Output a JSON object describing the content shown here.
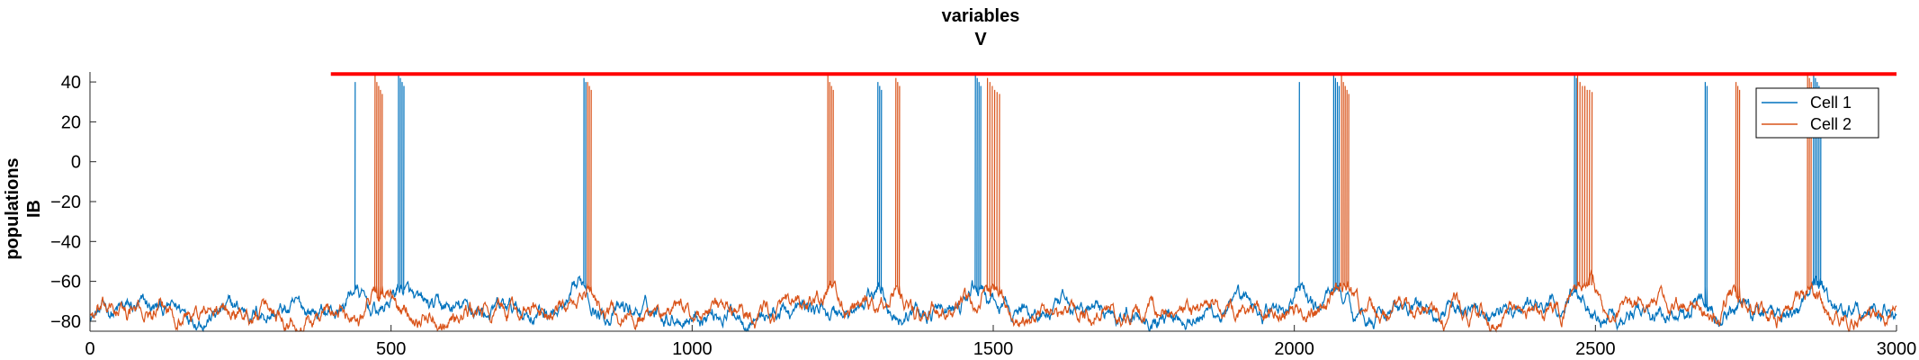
{
  "chart_data": {
    "type": "line",
    "title": [
      "variables",
      "V"
    ],
    "ylabel": [
      "populations",
      "IB"
    ],
    "xlabel": "",
    "xlim": [
      0,
      3000
    ],
    "ylim": [
      -85,
      45
    ],
    "xticks": [
      0,
      500,
      1000,
      1500,
      2000,
      2500,
      3000
    ],
    "yticks": [
      40,
      20,
      0,
      -20,
      -40,
      -60,
      -80
    ],
    "grid": false,
    "legend_position": "top-right",
    "threshold_line": {
      "value": 44,
      "x_start": 400,
      "x_end": 3000,
      "color": "#ff0000"
    },
    "series": [
      {
        "name": "Cell 1",
        "color": "#0072bd",
        "baseline": -75,
        "noise_amplitude": 5,
        "spikes": [
          {
            "t": 440,
            "peak": 40
          },
          {
            "t": 512,
            "peak": 44
          },
          {
            "t": 515,
            "peak": 42
          },
          {
            "t": 518,
            "peak": 40
          },
          {
            "t": 521,
            "peak": 38
          },
          {
            "t": 820,
            "peak": 42
          },
          {
            "t": 823,
            "peak": 40
          },
          {
            "t": 1308,
            "peak": 40
          },
          {
            "t": 1311,
            "peak": 38
          },
          {
            "t": 1314,
            "peak": 36
          },
          {
            "t": 1470,
            "peak": 44
          },
          {
            "t": 1473,
            "peak": 42
          },
          {
            "t": 1476,
            "peak": 40
          },
          {
            "t": 1479,
            "peak": 38
          },
          {
            "t": 2008,
            "peak": 40
          },
          {
            "t": 2065,
            "peak": 44
          },
          {
            "t": 2068,
            "peak": 42
          },
          {
            "t": 2071,
            "peak": 40
          },
          {
            "t": 2074,
            "peak": 38
          },
          {
            "t": 2465,
            "peak": 44
          },
          {
            "t": 2468,
            "peak": 42
          },
          {
            "t": 2682,
            "peak": 40
          },
          {
            "t": 2685,
            "peak": 38
          },
          {
            "t": 2862,
            "peak": 44
          },
          {
            "t": 2865,
            "peak": 42
          },
          {
            "t": 2868,
            "peak": 40
          },
          {
            "t": 2871,
            "peak": 38
          },
          {
            "t": 2874,
            "peak": 36
          }
        ]
      },
      {
        "name": "Cell 2",
        "color": "#d95319",
        "baseline": -76,
        "noise_amplitude": 5,
        "spikes": [
          {
            "t": 473,
            "peak": 44
          },
          {
            "t": 476,
            "peak": 40
          },
          {
            "t": 479,
            "peak": 38
          },
          {
            "t": 482,
            "peak": 36
          },
          {
            "t": 485,
            "peak": 34
          },
          {
            "t": 826,
            "peak": 40
          },
          {
            "t": 829,
            "peak": 38
          },
          {
            "t": 832,
            "peak": 36
          },
          {
            "t": 1225,
            "peak": 44
          },
          {
            "t": 1228,
            "peak": 40
          },
          {
            "t": 1231,
            "peak": 38
          },
          {
            "t": 1234,
            "peak": 36
          },
          {
            "t": 1338,
            "peak": 42
          },
          {
            "t": 1341,
            "peak": 40
          },
          {
            "t": 1344,
            "peak": 38
          },
          {
            "t": 1490,
            "peak": 42
          },
          {
            "t": 1494,
            "peak": 40
          },
          {
            "t": 1498,
            "peak": 38
          },
          {
            "t": 1502,
            "peak": 36
          },
          {
            "t": 1506,
            "peak": 35
          },
          {
            "t": 1510,
            "peak": 34
          },
          {
            "t": 2078,
            "peak": 44
          },
          {
            "t": 2081,
            "peak": 40
          },
          {
            "t": 2084,
            "peak": 38
          },
          {
            "t": 2087,
            "peak": 36
          },
          {
            "t": 2090,
            "peak": 34
          },
          {
            "t": 2470,
            "peak": 44
          },
          {
            "t": 2474,
            "peak": 40
          },
          {
            "t": 2478,
            "peak": 38
          },
          {
            "t": 2482,
            "peak": 38
          },
          {
            "t": 2486,
            "peak": 36
          },
          {
            "t": 2490,
            "peak": 36
          },
          {
            "t": 2494,
            "peak": 35
          },
          {
            "t": 2733,
            "peak": 40
          },
          {
            "t": 2736,
            "peak": 38
          },
          {
            "t": 2739,
            "peak": 36
          },
          {
            "t": 2852,
            "peak": 44
          },
          {
            "t": 2855,
            "peak": 42
          },
          {
            "t": 2858,
            "peak": 40
          }
        ]
      }
    ]
  }
}
